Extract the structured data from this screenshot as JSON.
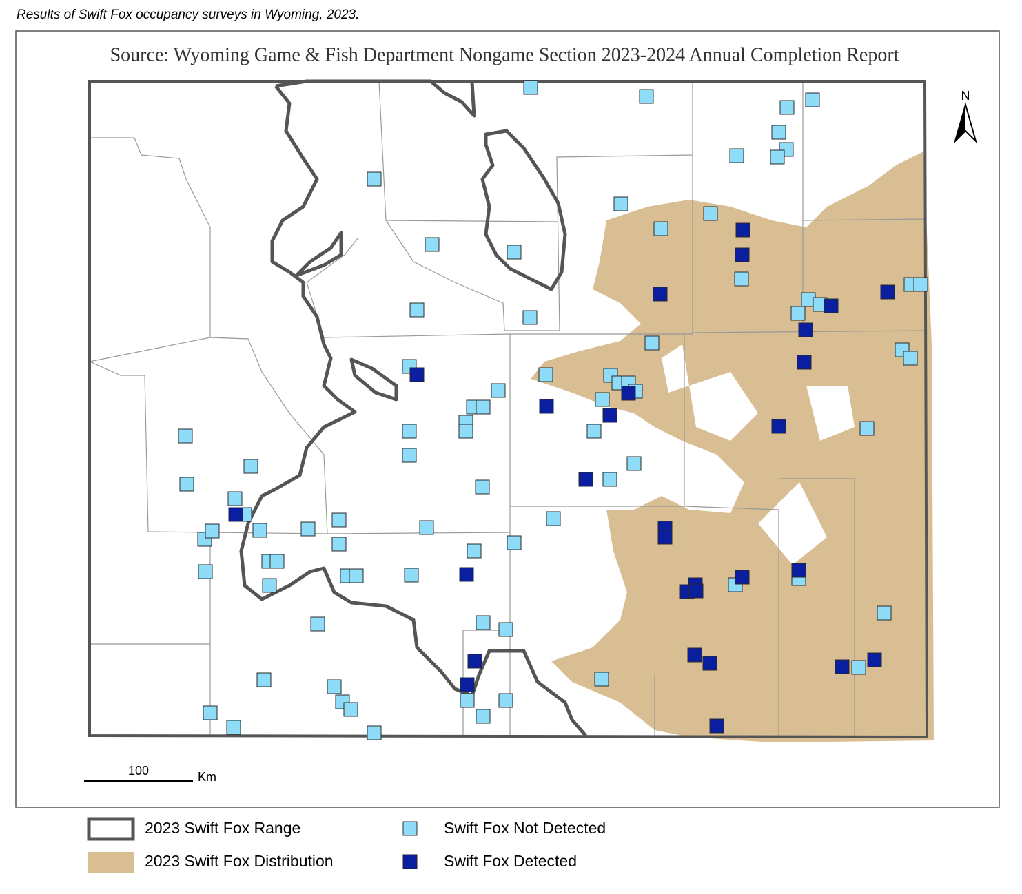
{
  "caption": "Results of Swift Fox occupancy surveys in Wyoming, 2023.",
  "map": {
    "title": "Source: Wyoming Game & Fish Department Nongame Section 2023-2024 Annual Completion Report",
    "north": "N",
    "scale": {
      "value": "100",
      "unit": "Km"
    }
  },
  "legend": {
    "range": "2023 Swift Fox Range",
    "distribution": "2023 Swift Fox Distribution",
    "not_detected": "Swift Fox Not Detected",
    "detected": "Swift Fox Detected"
  }
}
